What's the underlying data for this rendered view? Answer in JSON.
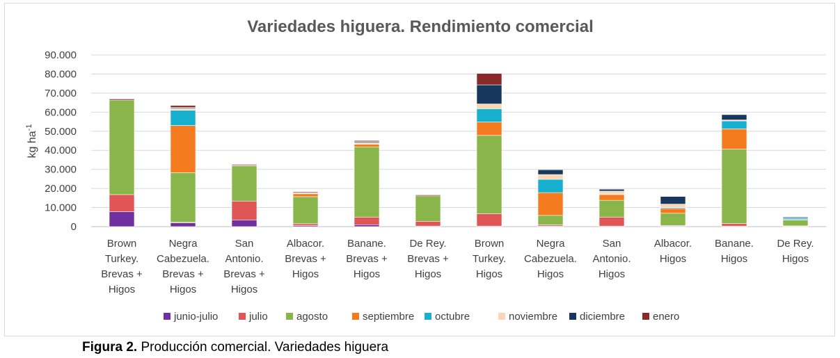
{
  "chart_data": {
    "type": "bar",
    "stacked": true,
    "title": "Variedades higuera. Rendimiento comercial",
    "ylabel": "kg ha",
    "ylabel_superscript": "-1",
    "xlabel": "",
    "ylim": [
      0,
      90000
    ],
    "yticks": [
      "0",
      "10.000",
      "20.000",
      "30.000",
      "40.000",
      "50.000",
      "60.000",
      "70.000",
      "80.000",
      "90.000"
    ],
    "ytick_values": [
      0,
      10000,
      20000,
      30000,
      40000,
      50000,
      60000,
      70000,
      80000,
      90000
    ],
    "grid": true,
    "legend_position": "bottom",
    "categories": [
      [
        "Brown",
        "Turkey.",
        "Brevas +",
        "Higos"
      ],
      [
        "Negra",
        "Cabezuela.",
        "Brevas +",
        "Higos"
      ],
      [
        "San",
        "Antonio.",
        "Brevas +",
        "Higos"
      ],
      [
        "Albacor.",
        "Brevas +",
        "Higos"
      ],
      [
        "Banane.",
        "Brevas +",
        "Higos"
      ],
      [
        "De Rey.",
        "Brevas +",
        "Higos"
      ],
      [
        "Brown",
        "Turkey.",
        "Higos"
      ],
      [
        "Negra",
        "Cabezuela.",
        "Higos"
      ],
      [
        "San",
        "Antonio.",
        "Higos"
      ],
      [
        "Albacor.",
        "Higos"
      ],
      [
        "Banane.",
        "Higos"
      ],
      [
        "De Rey.",
        "Higos"
      ]
    ],
    "series": [
      {
        "name": "junio-julio",
        "color": "#7030a0",
        "values": [
          7800,
          2000,
          3400,
          500,
          1000,
          300,
          300,
          300,
          300,
          300,
          300,
          100
        ]
      },
      {
        "name": "julio",
        "color": "#e05555",
        "values": [
          9000,
          300,
          10000,
          1000,
          4000,
          2500,
          6500,
          600,
          4700,
          300,
          1300,
          300
        ]
      },
      {
        "name": "agosto",
        "color": "#8ab54b",
        "values": [
          49500,
          26000,
          18500,
          14200,
          36800,
          13300,
          41000,
          5000,
          8800,
          6400,
          39000,
          3100
        ]
      },
      {
        "name": "septiembre",
        "color": "#f47b20",
        "values": [
          0,
          24700,
          200,
          1500,
          1300,
          0,
          7000,
          11900,
          3000,
          2500,
          10600,
          200
        ]
      },
      {
        "name": "octubre",
        "color": "#17b1cf",
        "values": [
          0,
          8000,
          0,
          0,
          0,
          0,
          7000,
          7000,
          300,
          500,
          4200,
          700
        ]
      },
      {
        "name": "noviembre",
        "color": "#fcd5b4",
        "values": [
          0,
          1000,
          0,
          500,
          1000,
          0,
          2500,
          2500,
          1500,
          1800,
          500,
          100
        ]
      },
      {
        "name": "diciembre",
        "color": "#17375e",
        "values": [
          0,
          500,
          0,
          0,
          500,
          0,
          10000,
          2500,
          1000,
          4000,
          2800,
          500
        ]
      },
      {
        "name": "enero",
        "color": "#8b2a2a",
        "values": [
          600,
          1000,
          500,
          500,
          500,
          500,
          6000,
          0,
          0,
          0,
          0,
          0
        ]
      }
    ]
  },
  "caption": {
    "label": "Figura 2.",
    "text": " Producción comercial. Variedades higuera"
  }
}
